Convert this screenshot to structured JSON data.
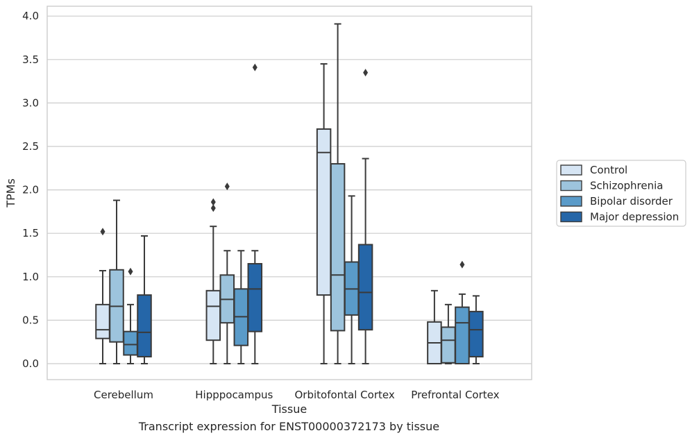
{
  "chart_data": {
    "type": "box",
    "xlabel": "Tissue",
    "ylabel": "TPMs",
    "caption": "Transcript expression for ENST00000372173 by tissue",
    "ylim": [
      -0.19,
      4.12
    ],
    "yticks": [
      "0.0",
      "0.5",
      "1.0",
      "1.5",
      "2.0",
      "2.5",
      "3.0",
      "3.5",
      "4.0"
    ],
    "grid": "horizontal",
    "legend_position": "right",
    "categories": [
      "Cerebellum",
      "Hipppocampus",
      "Orbitofontal Cortex",
      "Prefrontal Cortex"
    ],
    "series": [
      {
        "name": "Control",
        "color": "#d6e5f4",
        "boxes": [
          {
            "whislo": 0.0,
            "q1": 0.29,
            "med": 0.39,
            "q3": 0.68,
            "whishi": 1.07,
            "fliers": [
              1.52
            ]
          },
          {
            "whislo": 0.0,
            "q1": 0.27,
            "med": 0.66,
            "q3": 0.84,
            "whishi": 1.58,
            "fliers": [
              1.79,
              1.86
            ]
          },
          {
            "whislo": 0.0,
            "q1": 0.79,
            "med": 2.43,
            "q3": 2.7,
            "whishi": 3.45,
            "fliers": []
          },
          {
            "whislo": 0.0,
            "q1": 0.0,
            "med": 0.24,
            "q3": 0.48,
            "whishi": 0.84,
            "fliers": []
          }
        ]
      },
      {
        "name": "Schizophrenia",
        "color": "#9dc4dd",
        "boxes": [
          {
            "whislo": 0.0,
            "q1": 0.25,
            "med": 0.66,
            "q3": 1.08,
            "whishi": 1.88,
            "fliers": []
          },
          {
            "whislo": 0.0,
            "q1": 0.47,
            "med": 0.74,
            "q3": 1.02,
            "whishi": 1.3,
            "fliers": [
              2.04
            ]
          },
          {
            "whislo": 0.0,
            "q1": 0.38,
            "med": 1.02,
            "q3": 2.3,
            "whishi": 3.91,
            "fliers": []
          },
          {
            "whislo": 0.0,
            "q1": 0.01,
            "med": 0.27,
            "q3": 0.42,
            "whishi": 0.68,
            "fliers": []
          }
        ]
      },
      {
        "name": "Bipolar disorder",
        "color": "#5a9bc9",
        "boxes": [
          {
            "whislo": 0.0,
            "q1": 0.1,
            "med": 0.22,
            "q3": 0.37,
            "whishi": 0.68,
            "fliers": [
              1.06
            ]
          },
          {
            "whislo": 0.0,
            "q1": 0.21,
            "med": 0.54,
            "q3": 0.86,
            "whishi": 1.3,
            "fliers": []
          },
          {
            "whislo": 0.0,
            "q1": 0.56,
            "med": 0.86,
            "q3": 1.17,
            "whishi": 1.93,
            "fliers": []
          },
          {
            "whislo": 0.0,
            "q1": 0.0,
            "med": 0.47,
            "q3": 0.65,
            "whishi": 0.8,
            "fliers": [
              1.14
            ]
          }
        ]
      },
      {
        "name": "Major depression",
        "color": "#2566a8",
        "boxes": [
          {
            "whislo": 0.0,
            "q1": 0.08,
            "med": 0.36,
            "q3": 0.79,
            "whishi": 1.47,
            "fliers": []
          },
          {
            "whislo": 0.0,
            "q1": 0.37,
            "med": 0.86,
            "q3": 1.15,
            "whishi": 1.3,
            "fliers": [
              3.41
            ]
          },
          {
            "whislo": 0.0,
            "q1": 0.39,
            "med": 0.82,
            "q3": 1.37,
            "whishi": 2.36,
            "fliers": [
              3.35
            ]
          },
          {
            "whislo": 0.0,
            "q1": 0.08,
            "med": 0.39,
            "q3": 0.6,
            "whishi": 0.78,
            "fliers": []
          }
        ]
      }
    ]
  }
}
